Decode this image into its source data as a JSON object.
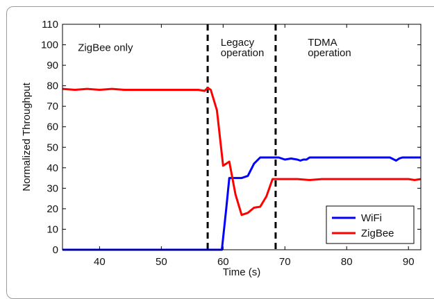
{
  "chart_data": {
    "type": "line",
    "title": "",
    "xlabel": "Time (s)",
    "ylabel": "Normalized Throughput",
    "xlim": [
      34,
      92
    ],
    "ylim": [
      0,
      110
    ],
    "xticks": [
      40,
      50,
      60,
      70,
      80,
      90
    ],
    "yticks": [
      0,
      10,
      20,
      30,
      40,
      50,
      60,
      70,
      80,
      90,
      100,
      110
    ],
    "grid": false,
    "legend_position": "bottom-right",
    "vlines": [
      57.5,
      68.5
    ],
    "annotations": [
      {
        "text": "ZigBee only",
        "x": 36.5,
        "y": 97
      },
      {
        "text": "Legacy",
        "x": 59.6,
        "y": 99.5
      },
      {
        "text": "operation",
        "x": 59.6,
        "y": 94.5
      },
      {
        "text": "TDMA",
        "x": 73.7,
        "y": 99.5
      },
      {
        "text": "operation",
        "x": 73.7,
        "y": 94.5
      }
    ],
    "series": [
      {
        "name": "WiFi",
        "color": "#0000ff",
        "x": [
          34,
          59.8,
          60.5,
          61,
          62,
          63,
          64,
          65,
          66,
          67,
          68,
          69,
          70,
          71,
          72,
          72.5,
          73,
          73.5,
          74,
          80,
          87,
          88,
          88.5,
          89,
          90,
          92
        ],
        "y": [
          0,
          0,
          20,
          35,
          35,
          35,
          36,
          42,
          45,
          45,
          45,
          45,
          44,
          44.5,
          44,
          43.5,
          44,
          44,
          45,
          45,
          45,
          43.5,
          44.5,
          45,
          45,
          45
        ]
      },
      {
        "name": "ZigBee",
        "color": "#ff0000",
        "x": [
          34,
          36,
          38,
          40,
          42,
          44,
          46,
          48,
          50,
          52,
          54,
          56,
          57,
          57.5,
          58,
          59,
          60,
          61,
          62,
          63,
          64,
          65,
          66,
          67,
          68,
          69,
          70,
          72,
          74,
          76,
          80,
          86,
          90,
          91,
          92
        ],
        "y": [
          78.5,
          78,
          78.5,
          78,
          78.5,
          78,
          78,
          78,
          78,
          78,
          78,
          78,
          77.5,
          79,
          78,
          68,
          41,
          43,
          27,
          17,
          18,
          20.5,
          21,
          26,
          34.5,
          34.5,
          34.5,
          34.5,
          34,
          34.5,
          34.5,
          34.5,
          34.5,
          34,
          34.5
        ]
      }
    ]
  }
}
